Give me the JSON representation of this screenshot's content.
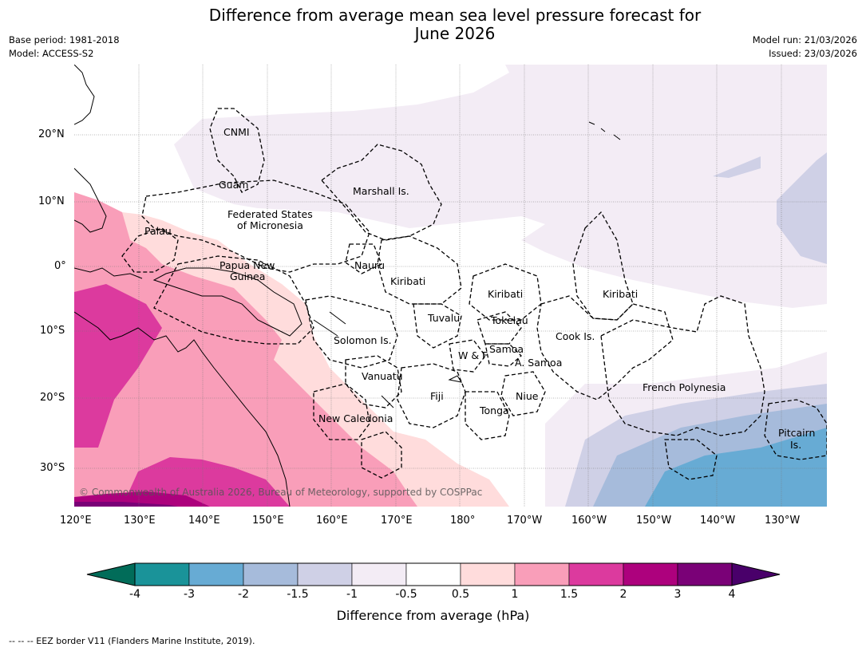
{
  "header": {
    "title_line1": "Difference from average mean sea level pressure forecast for",
    "title_line2": "June 2026",
    "base_period": "Base period: 1981-2018",
    "model": "Model: ACCESS-S2",
    "model_run": "Model run: 21/03/2026",
    "issued": "Issued: 23/03/2026"
  },
  "map": {
    "copyright": "© Commonwealth of Australia 2026, Bureau of Meteorology, supported by COSPPac",
    "lat_labels": [
      "20°N",
      "10°N",
      "0°",
      "10°S",
      "20°S",
      "30°S"
    ],
    "lon_labels": [
      "120°E",
      "130°E",
      "140°E",
      "150°E",
      "160°E",
      "170°E",
      "180°",
      "170°W",
      "160°W",
      "150°W",
      "140°W",
      "130°W"
    ],
    "regions": {
      "cnmi": "CNMI",
      "guam": "Guam",
      "marshall": "Marshall Is.",
      "fsm_1": "Federated States",
      "fsm_2": "of Micronesia",
      "palau": "Palau",
      "png_1": "Papua New",
      "png_2": "Guinea",
      "nauru": "Nauru",
      "kiribati_w": "Kiribati",
      "kiribati_c": "Kiribati",
      "kiribati_e": "Kiribati",
      "tuvalu": "Tuvalu",
      "tokelau": "Tokelau",
      "solomon": "Solomon Is.",
      "wf": "W & F",
      "samoa": "Samoa",
      "am_samoa": "A. Samoa",
      "cook": "Cook Is.",
      "vanuatu": "Vanuatu",
      "fiji": "Fiji",
      "niue": "Niue",
      "tonga": "Tonga",
      "new_caledonia": "New Caledonia",
      "french_polynesia": "French Polynesia",
      "pitcairn_1": "Pitcairn",
      "pitcairn_2": "Is."
    }
  },
  "colorbar": {
    "title": "Difference from average (hPa)",
    "ticks": [
      "-4",
      "-3",
      "-2",
      "-1.5",
      "-1",
      "-0.5",
      "0.5",
      "1",
      "1.5",
      "2",
      "3",
      "4"
    ],
    "colors": [
      "#1a9399",
      "#67abd4",
      "#a6bbdb",
      "#cfd0e6",
      "#f3ecf5",
      "#ffffff",
      "#ffdcdc",
      "#f99eb9",
      "#dc3a9e",
      "#ad017d",
      "#7a0177"
    ],
    "low_extend_color": "#016c59",
    "high_extend_color": "#49006a"
  },
  "footer": {
    "eez_note": "--  --  -- EEZ border V11 (Flanders Marine Institute, 2019)."
  }
}
